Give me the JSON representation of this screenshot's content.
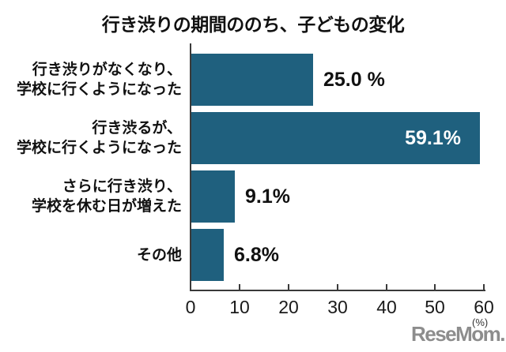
{
  "chart_data": {
    "type": "bar",
    "orientation": "horizontal",
    "title": "行き渋りの期間ののち、子どもの変化",
    "xlabel_unit": "(%)",
    "xlim": [
      0,
      60
    ],
    "x_ticks": [
      "0",
      "10",
      "20",
      "30",
      "40",
      "50",
      "60"
    ],
    "grid": false,
    "bar_color": "#1f607e",
    "inside_label_color": "#ffffff",
    "bars": [
      {
        "label_line1": "行き渋りがなくなり、",
        "label_line2": "学校に行くようになった",
        "value": 25.0,
        "value_label": "25.0 %",
        "label_inside": false
      },
      {
        "label_line1": "行き渋るが、",
        "label_line2": "学校に行くようになった",
        "value": 59.1,
        "value_label": "59.1%",
        "label_inside": true
      },
      {
        "label_line1": "さらに行き渋り、",
        "label_line2": "学校を休む日が増えた",
        "value": 9.1,
        "value_label": "9.1%",
        "label_inside": false
      },
      {
        "label_line1": "その他",
        "label_line2": "",
        "value": 6.8,
        "value_label": "6.8%",
        "label_inside": false
      }
    ],
    "watermark": "ReseMom."
  }
}
